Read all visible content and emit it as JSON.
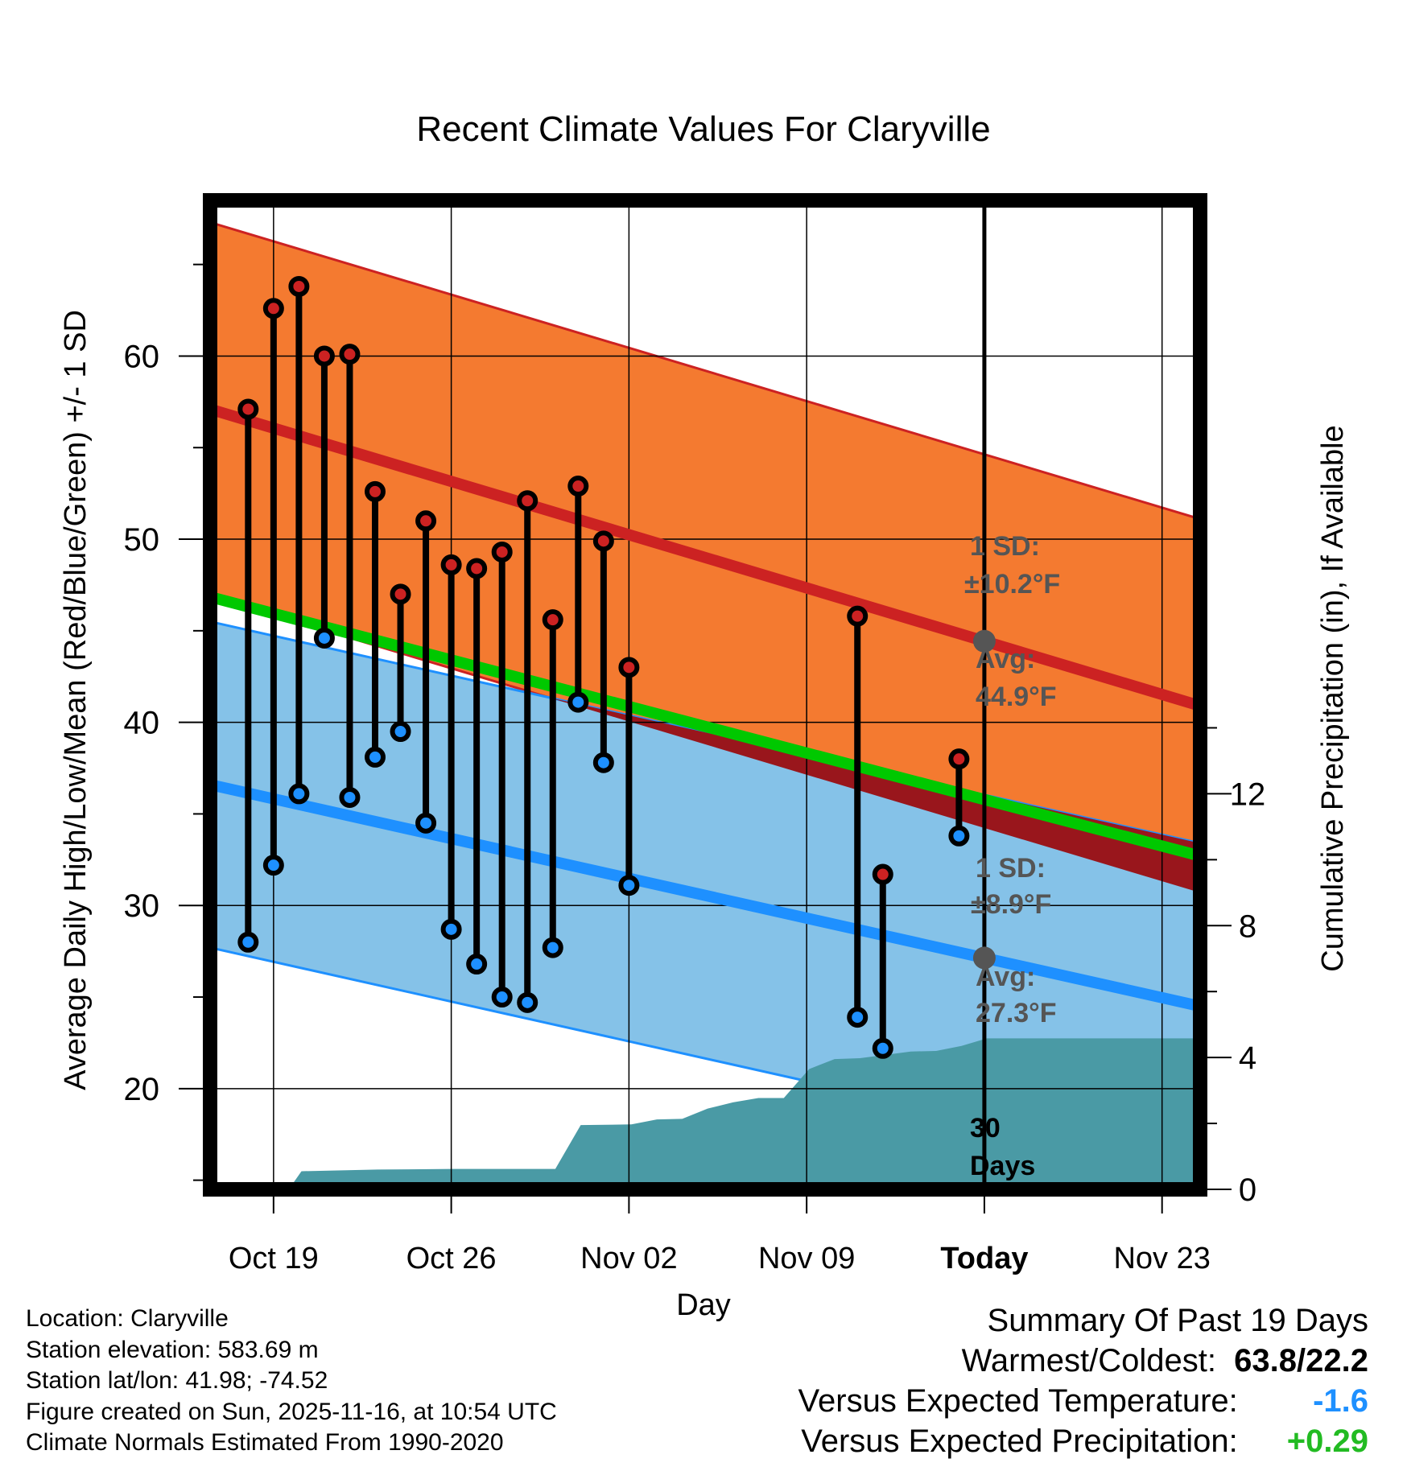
{
  "title": "Recent Climate Values For Claryville",
  "xlabel": "Day",
  "ylabel_left": "Average Daily High/Low/Mean (Red/Blue/Green) +/- 1 SD",
  "ylabel_right": "Cumulative Precipitation (in), If Available",
  "x_ticks": [
    {
      "label": "Oct 19",
      "day": 19
    },
    {
      "label": "Oct 26",
      "day": 26
    },
    {
      "label": "Nov 02",
      "day": 33
    },
    {
      "label": "Nov 09",
      "day": 40
    },
    {
      "label": "Today",
      "day": 47
    },
    {
      "label": "Nov 23",
      "day": 54
    }
  ],
  "y_ticks_left": [
    20,
    30,
    40,
    50,
    60
  ],
  "y_ticks_right": [
    0,
    4,
    8,
    12
  ],
  "annotations": {
    "high_sd_line1": "1 SD:",
    "high_sd_line2": "±10.2°F",
    "high_avg_line1": "Avg:",
    "high_avg_line2": "44.9°F",
    "low_sd_line1": "1 SD:",
    "low_sd_line2": "±8.9°F",
    "low_avg_line1": "Avg:",
    "low_avg_line2": "27.3°F",
    "days_line1": "30",
    "days_line2": "Days"
  },
  "info": {
    "location": "Location: Claryville",
    "elevation": "Station elevation: 583.69 m",
    "latlon": "Station lat/lon: 41.98; -74.52",
    "created": "Figure created on Sun, 2025-11-16, at 10:54 UTC",
    "normals": "Climate Normals Estimated From 1990-2020"
  },
  "summary": {
    "title": "Summary Of Past 19 Days",
    "warm_cold_label": "Warmest/Coldest:",
    "warm_cold_value": "63.8/22.2",
    "temp_label": "Versus Expected Temperature:",
    "temp_value": "-1.6",
    "precip_label": "Versus Expected Precipitation:",
    "precip_value": "+0.29"
  },
  "colors": {
    "high_band": "#f47a30",
    "low_band": "#85c2e8",
    "high_line": "#cc2222",
    "low_line": "#1e90ff",
    "mean_line": "#00c800",
    "precip": "#4a9aa5",
    "high_dot": "#cc2222",
    "low_dot": "#1e90ff",
    "temp_value": "#1e90ff",
    "precip_value": "#22bb22",
    "annotation": "#555555"
  },
  "chart_data": {
    "type": "range",
    "x_range": [
      16.5,
      55.5
    ],
    "ylim": [
      14.5,
      68.5
    ],
    "ylim_right": [
      0,
      30
    ],
    "today_day": 47,
    "normals": {
      "days": [
        16.5,
        55.5
      ],
      "high_avg": [
        57.1,
        40.9
      ],
      "high_sd": 10.2,
      "low_avg": [
        36.6,
        24.5
      ],
      "low_sd": 8.9
    },
    "observations": [
      {
        "day": 18,
        "high": 57.1,
        "low": 28.0
      },
      {
        "day": 19,
        "high": 62.6,
        "low": 32.2
      },
      {
        "day": 20,
        "high": 63.8,
        "low": 36.1
      },
      {
        "day": 21,
        "high": 60.0,
        "low": 44.6
      },
      {
        "day": 22,
        "high": 60.1,
        "low": 35.9
      },
      {
        "day": 23,
        "high": 52.6,
        "low": 38.1
      },
      {
        "day": 24,
        "high": 47.0,
        "low": 39.5
      },
      {
        "day": 25,
        "high": 51.0,
        "low": 34.5
      },
      {
        "day": 26,
        "high": 48.6,
        "low": 28.7
      },
      {
        "day": 27,
        "high": 48.4,
        "low": 26.8
      },
      {
        "day": 28,
        "high": 49.3,
        "low": 25.0
      },
      {
        "day": 29,
        "high": 52.1,
        "low": 24.7
      },
      {
        "day": 30,
        "high": 45.6,
        "low": 27.7
      },
      {
        "day": 31,
        "high": 52.9,
        "low": 41.1
      },
      {
        "day": 32,
        "high": 49.9,
        "low": 37.8
      },
      {
        "day": 33,
        "high": 43.0,
        "low": 31.1
      },
      {
        "day": 42,
        "high": 45.8,
        "low": 23.9
      },
      {
        "day": 43,
        "high": 31.7,
        "low": 22.2
      },
      {
        "day": 46,
        "high": 38.0,
        "low": 33.8
      }
    ],
    "precipitation": {
      "days": [
        16.5,
        19.6,
        20.1,
        23.1,
        26.1,
        30.1,
        31.1,
        33.1,
        34.1,
        35.1,
        36.1,
        37.1,
        38.1,
        39.1,
        40.1,
        41.1,
        42.1,
        43.1,
        44.1,
        45.1,
        46.1,
        47.1,
        55.5
      ],
      "values": [
        0.0,
        0.0,
        0.55,
        0.6,
        0.62,
        0.62,
        1.95,
        1.97,
        2.12,
        2.14,
        2.45,
        2.64,
        2.77,
        2.77,
        3.65,
        3.95,
        3.98,
        4.08,
        4.18,
        4.2,
        4.35,
        4.58,
        4.58
      ]
    }
  }
}
